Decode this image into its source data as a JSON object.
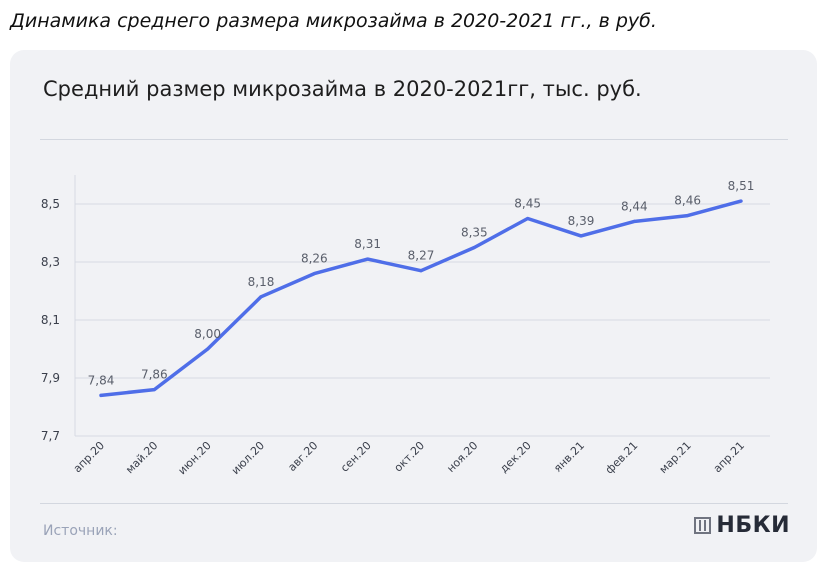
{
  "page": {
    "heading": "Динамика среднего размера микрозайма в 2020-2021 гг., в руб."
  },
  "card": {
    "source_label": "Источник:",
    "logo_text": "НБКИ",
    "logo_icon": "nbki-logo-mark-icon"
  },
  "colors": {
    "line": "#4f6ee8",
    "label": "#5a5f6b",
    "grid": "#d6dae2",
    "card_background": "#f1f2f5"
  },
  "chart_data": {
    "type": "line",
    "title": "Средний размер микрозайма в 2020-2021гг,  тыс. руб.",
    "xlabel": "",
    "ylabel": "",
    "categories": [
      "апр.20",
      "май.20",
      "июн.20",
      "июл.20",
      "авг.20",
      "сен.20",
      "окт.20",
      "ноя.20",
      "дек.20",
      "янв.21",
      "фев.21",
      "мар.21",
      "апр.21"
    ],
    "values": [
      7.84,
      7.86,
      8.0,
      8.18,
      8.26,
      8.31,
      8.27,
      8.35,
      8.45,
      8.39,
      8.44,
      8.46,
      8.51
    ],
    "value_labels": [
      "7,84",
      "7,86",
      "8,00",
      "8,18",
      "8,26",
      "8,31",
      "8,27",
      "8,35",
      "8,45",
      "8,39",
      "8,44",
      "8,46",
      "8,51"
    ],
    "yticks": [
      7.7,
      7.9,
      8.1,
      8.3,
      8.5
    ],
    "ytick_labels": [
      "7,7",
      "7,9",
      "8,1",
      "8,3",
      "8,5"
    ],
    "ylim": [
      7.7,
      8.6
    ],
    "grid": true,
    "legend": false
  }
}
